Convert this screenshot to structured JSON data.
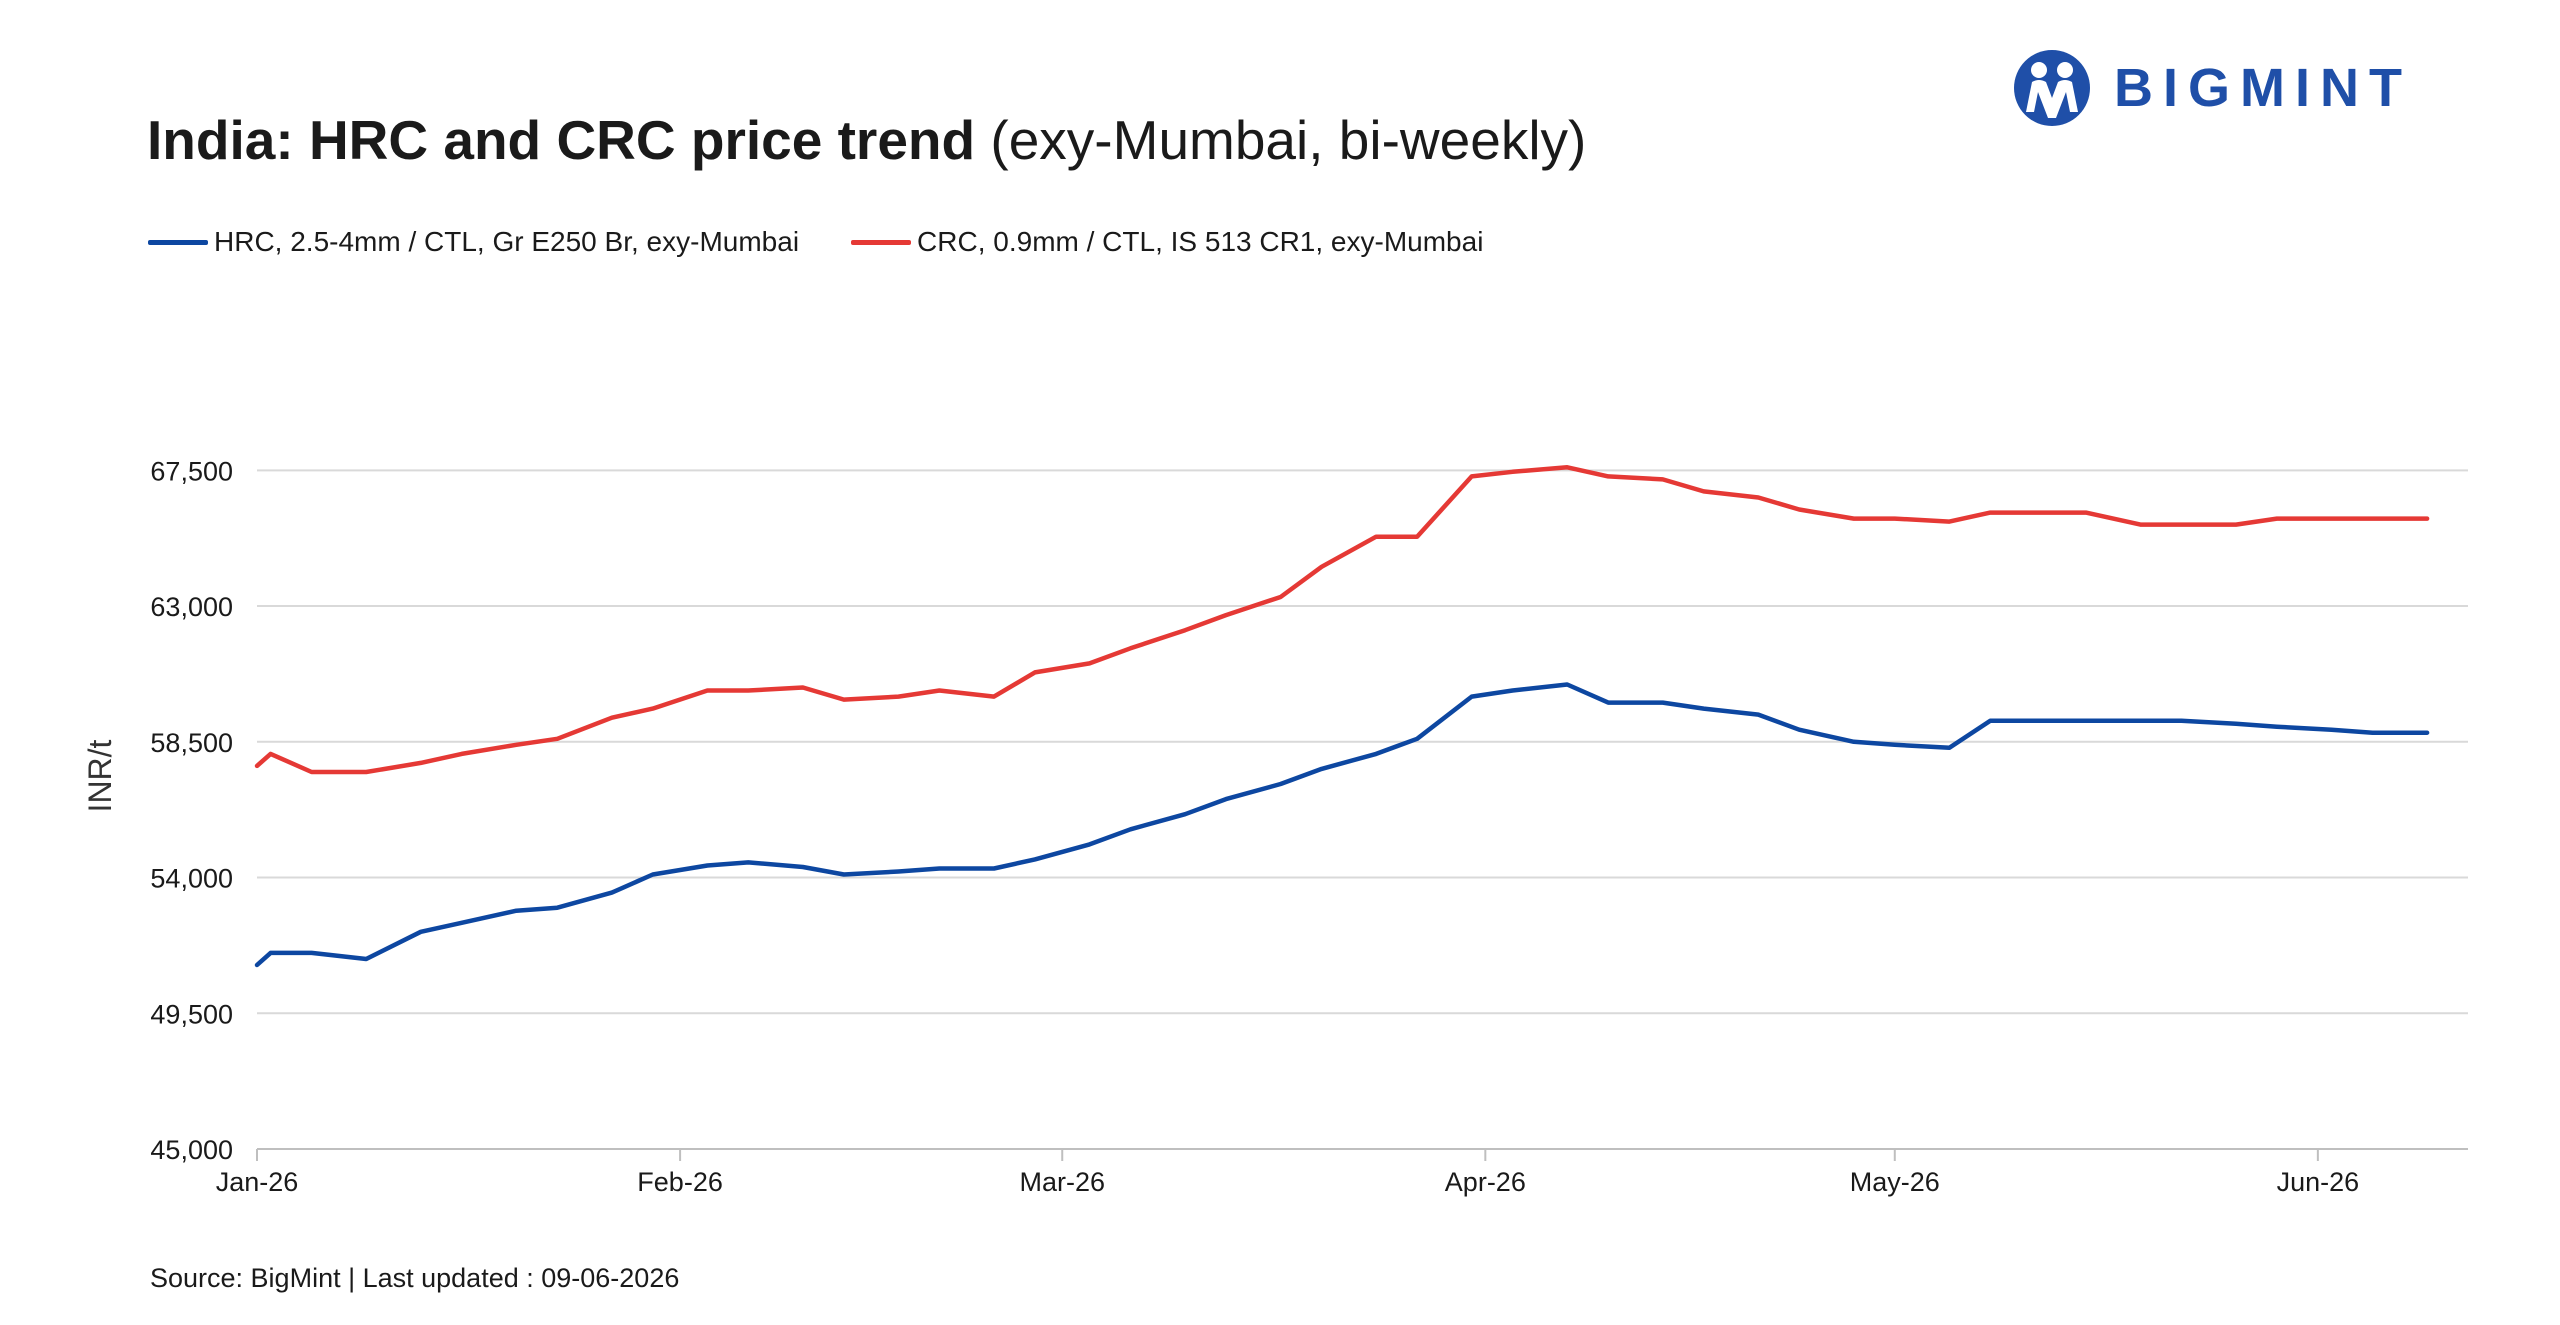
{
  "header": {
    "title_bold": "India: HRC and CRC price trend",
    "title_rest": " (exy-Mumbai, bi-weekly)"
  },
  "logo": {
    "text": "BIGMINT",
    "color": "#1f4fa8"
  },
  "footer": {
    "source": "Source: BigMint | Last updated : 09-06-2026"
  },
  "chart_data": {
    "type": "line",
    "title": "India: HRC and CRC price trend (exy-Mumbai, bi-weekly)",
    "ylabel": "INR/t",
    "xlabel": "",
    "ylim": [
      45000,
      69500
    ],
    "yticks": [
      45000,
      49500,
      54000,
      58500,
      63000,
      67500
    ],
    "ytick_labels": [
      "45,000",
      "49,500",
      "54,000",
      "58,500",
      "63,000",
      "67,500"
    ],
    "x_range": [
      "2026-01-01",
      "2026-06-12"
    ],
    "xticks": [
      {
        "date": "2026-01-01",
        "label": "Jan-26"
      },
      {
        "date": "2026-02-01",
        "label": "Feb-26"
      },
      {
        "date": "2026-03-01",
        "label": "Mar-26"
      },
      {
        "date": "2026-04-01",
        "label": "Apr-26"
      },
      {
        "date": "2026-05-01",
        "label": "May-26"
      },
      {
        "date": "2026-06-01",
        "label": "Jun-26"
      }
    ],
    "grid": true,
    "legend_position": "top-left",
    "series": [
      {
        "name": "HRC, 2.5-4mm / CTL, Gr E250 Br, exy-Mumbai",
        "color": "#0d47a1",
        "points": [
          [
            "2026-01-01",
            51100
          ],
          [
            "2026-01-02",
            51500
          ],
          [
            "2026-01-05",
            51500
          ],
          [
            "2026-01-09",
            51300
          ],
          [
            "2026-01-13",
            52200
          ],
          [
            "2026-01-16",
            52500
          ],
          [
            "2026-01-20",
            52900
          ],
          [
            "2026-01-23",
            53000
          ],
          [
            "2026-01-27",
            53500
          ],
          [
            "2026-01-30",
            54100
          ],
          [
            "2026-02-03",
            54400
          ],
          [
            "2026-02-06",
            54500
          ],
          [
            "2026-02-10",
            54350
          ],
          [
            "2026-02-13",
            54100
          ],
          [
            "2026-02-17",
            54200
          ],
          [
            "2026-02-20",
            54300
          ],
          [
            "2026-02-24",
            54300
          ],
          [
            "2026-02-27",
            54600
          ],
          [
            "2026-03-03",
            55100
          ],
          [
            "2026-03-06",
            55600
          ],
          [
            "2026-03-10",
            56100
          ],
          [
            "2026-03-13",
            56600
          ],
          [
            "2026-03-17",
            57100
          ],
          [
            "2026-03-20",
            57600
          ],
          [
            "2026-03-24",
            58100
          ],
          [
            "2026-03-27",
            58600
          ],
          [
            "2026-03-31",
            60000
          ],
          [
            "2026-04-03",
            60200
          ],
          [
            "2026-04-07",
            60400
          ],
          [
            "2026-04-10",
            59800
          ],
          [
            "2026-04-14",
            59800
          ],
          [
            "2026-04-17",
            59600
          ],
          [
            "2026-04-21",
            59400
          ],
          [
            "2026-04-24",
            58900
          ],
          [
            "2026-04-28",
            58500
          ],
          [
            "2026-05-01",
            58400
          ],
          [
            "2026-05-05",
            58300
          ],
          [
            "2026-05-08",
            59200
          ],
          [
            "2026-05-12",
            59200
          ],
          [
            "2026-05-15",
            59200
          ],
          [
            "2026-05-19",
            59200
          ],
          [
            "2026-05-22",
            59200
          ],
          [
            "2026-05-26",
            59100
          ],
          [
            "2026-05-29",
            59000
          ],
          [
            "2026-06-02",
            58900
          ],
          [
            "2026-06-05",
            58800
          ],
          [
            "2026-06-09",
            58800
          ]
        ]
      },
      {
        "name": "CRC, 0.9mm / CTL, IS 513 CR1, exy-Mumbai",
        "color": "#e53935",
        "points": [
          [
            "2026-01-01",
            57700
          ],
          [
            "2026-01-02",
            58100
          ],
          [
            "2026-01-05",
            57500
          ],
          [
            "2026-01-09",
            57500
          ],
          [
            "2026-01-13",
            57800
          ],
          [
            "2026-01-16",
            58100
          ],
          [
            "2026-01-20",
            58400
          ],
          [
            "2026-01-23",
            58600
          ],
          [
            "2026-01-27",
            59300
          ],
          [
            "2026-01-30",
            59600
          ],
          [
            "2026-02-03",
            60200
          ],
          [
            "2026-02-06",
            60200
          ],
          [
            "2026-02-10",
            60300
          ],
          [
            "2026-02-13",
            59900
          ],
          [
            "2026-02-17",
            60000
          ],
          [
            "2026-02-20",
            60200
          ],
          [
            "2026-02-24",
            60000
          ],
          [
            "2026-02-27",
            60800
          ],
          [
            "2026-03-03",
            61100
          ],
          [
            "2026-03-06",
            61600
          ],
          [
            "2026-03-10",
            62200
          ],
          [
            "2026-03-13",
            62700
          ],
          [
            "2026-03-17",
            63300
          ],
          [
            "2026-03-20",
            64300
          ],
          [
            "2026-03-24",
            65300
          ],
          [
            "2026-03-27",
            65300
          ],
          [
            "2026-03-31",
            67300
          ],
          [
            "2026-04-03",
            67450
          ],
          [
            "2026-04-07",
            67600
          ],
          [
            "2026-04-10",
            67300
          ],
          [
            "2026-04-14",
            67200
          ],
          [
            "2026-04-17",
            66800
          ],
          [
            "2026-04-21",
            66600
          ],
          [
            "2026-04-24",
            66200
          ],
          [
            "2026-04-28",
            65900
          ],
          [
            "2026-05-01",
            65900
          ],
          [
            "2026-05-05",
            65800
          ],
          [
            "2026-05-08",
            66100
          ],
          [
            "2026-05-12",
            66100
          ],
          [
            "2026-05-15",
            66100
          ],
          [
            "2026-05-19",
            65700
          ],
          [
            "2026-05-22",
            65700
          ],
          [
            "2026-05-26",
            65700
          ],
          [
            "2026-05-29",
            65900
          ],
          [
            "2026-06-02",
            65900
          ],
          [
            "2026-06-05",
            65900
          ],
          [
            "2026-06-09",
            65900
          ]
        ]
      }
    ]
  }
}
